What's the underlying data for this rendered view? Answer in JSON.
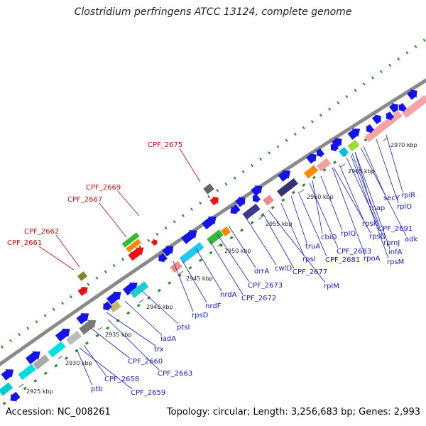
{
  "title": "Clostridium perfringens ATCC 13124, complete genome",
  "footer": {
    "accession": "Accession: NC_008261",
    "stats": "Topology: circular; Length: 3,256,683 bp; Genes: 2,993"
  },
  "colors": {
    "gene_blue": "#1414e6",
    "label_blue": "#1a1ad0",
    "label_red": "#cc1111",
    "backbone": "#8a8a8a",
    "gc_dots": "#2a8a2a"
  },
  "kbp_labels": [
    "2925 kbp",
    "2930 kbp",
    "2935 kbp",
    "2940 kbp",
    "2945 kbp",
    "2950 kbp",
    "2955 kbp",
    "2960 kbp",
    "2965 kbp",
    "2970 kbp"
  ],
  "gene_labels_blue": [
    "ptb",
    "CPF_2659",
    "CPF_2658",
    "CPF_2663",
    "CPF_2660",
    "trx",
    "iadA",
    "ptsI",
    "rpsD",
    "nrdF",
    "nrdA",
    "CPF_2672",
    "CPF_2673",
    "drrA",
    "cwlD",
    "CPF_2677",
    "rplM",
    "rpsI",
    "truA",
    "CPF_2681",
    "CPF_2683",
    "cbiO",
    "rplQ",
    "rpoA",
    "rpsD",
    "rpsK",
    "rpmJ",
    "rpsM",
    "infA",
    "adk",
    "CPF_2691",
    "map",
    "secY",
    "rplO",
    "rplR"
  ],
  "gene_labels_red": [
    "CPF_2661",
    "CPF_2662",
    "CPF_2667",
    "CPF_2669",
    "CPF_2675"
  ]
}
